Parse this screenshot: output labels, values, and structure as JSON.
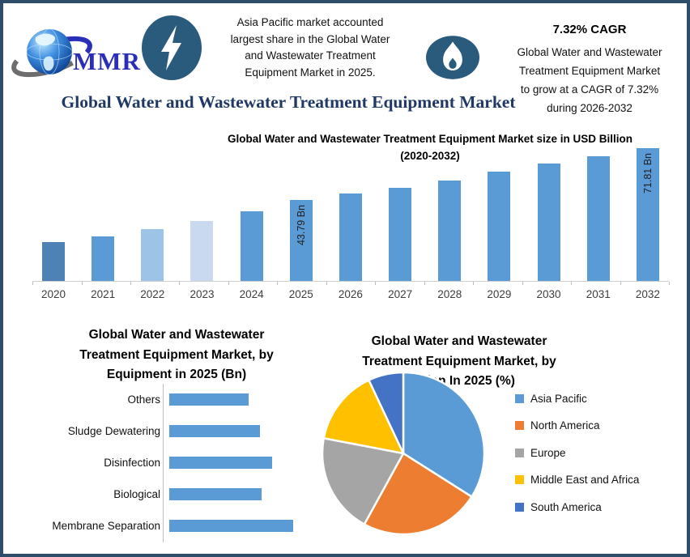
{
  "header": {
    "logo": {
      "icon": "globe-logo",
      "text": "MMR"
    },
    "highlight": {
      "icon": "lightning-icon",
      "lines": [
        "Asia Pacific market accounted",
        "largest share in the Global Water",
        "and Wastewater Treatment",
        "Equipment Market in 2025."
      ]
    },
    "cagr": {
      "icon": "flame-icon",
      "heading": "7.32% CAGR",
      "lines": [
        "Global Water and Wastewater",
        "Treatment Equipment Market",
        "to grow at a CAGR of 7.32%",
        "during 2026-2032"
      ]
    }
  },
  "main_title": "Global Water and Wastewater Treatment Equipment Market",
  "colors": {
    "frame_border": "#2E4D6B",
    "icon_badge": "#2A5A7C",
    "title_navy": "#1F3864",
    "bar_blue": "#5B9BD5",
    "logo_blue": "#2B2FB8",
    "axis_gray": "#CFCFCF"
  },
  "chart_data": [
    {
      "id": "market-size-bar",
      "type": "bar",
      "title": "Global Water and Wastewater Treatment Equipment Market size in USD Billion (2020-2032)",
      "title_lines": [
        "Global Water and Wastewater Treatment Equipment Market size in USD Billion",
        "(2020-2032)"
      ],
      "categories": [
        "2020",
        "2021",
        "2022",
        "2023",
        "2024",
        "2025",
        "2026",
        "2027",
        "2028",
        "2029",
        "2030",
        "2031",
        "2032"
      ],
      "values": [
        21,
        24,
        28,
        32.5,
        37.5,
        43.79,
        47.5,
        50.5,
        54.5,
        59,
        63.5,
        67.5,
        71.81
      ],
      "values_note": "only 2025 (43.79 Bn) and 2032 (71.81 Bn) are labeled; other values estimated from bar heights",
      "data_labels": [
        null,
        null,
        null,
        null,
        null,
        "43.79 Bn",
        null,
        null,
        null,
        null,
        null,
        null,
        "71.81 Bn"
      ],
      "bar_colors": [
        "#4E81B4",
        "#5B9BD5",
        "#9DC3E6",
        "#C9D9F0",
        "#5B9BD5",
        "#5B9BD5",
        "#5B9BD5",
        "#5B9BD5",
        "#5B9BD5",
        "#5B9BD5",
        "#5B9BD5",
        "#5B9BD5",
        "#5B9BD5"
      ],
      "unit": "USD Billion",
      "ylim": [
        0,
        71.81
      ],
      "grid": false,
      "legend": false
    },
    {
      "id": "equipment-bar",
      "type": "bar",
      "orientation": "horizontal",
      "title": "Global Water and Wastewater Treatment Equipment Market, by Equipment in 2025 (Bn)",
      "title_lines": [
        "Global Water and Wastewater",
        "Treatment Equipment Market, by",
        "Equipment in 2025 (Bn)"
      ],
      "categories": [
        "Others",
        "Sludge Dewatering",
        "Disinfection",
        "Biological",
        "Membrane Separation"
      ],
      "values": [
        7.1,
        8.1,
        9.2,
        8.3,
        11.1
      ],
      "values_note": "no data labels shown in chart; values are estimates of relative bar lengths in Bn",
      "bar_color": "#5B9BD5",
      "grid": false,
      "legend": false
    },
    {
      "id": "region-pie",
      "type": "pie",
      "title": "Global Water and Wastewater Treatment Equipment Market, by Region In 2025 (%)",
      "title_lines": [
        "Global Water and Wastewater",
        "Treatment Equipment Market, by",
        "Region In 2025 (%)"
      ],
      "labels": [
        "Asia Pacific",
        "North America",
        "Europe",
        "Middle East and Africa",
        "South America"
      ],
      "values": [
        34,
        24,
        20,
        15,
        7
      ],
      "values_note": "percentages estimated from slice angles; no numeric labels shown",
      "colors": [
        "#5B9BD5",
        "#ED7D31",
        "#A5A5A5",
        "#FFC000",
        "#4472C4"
      ],
      "start_angle_deg": 0,
      "legend_position": "right"
    }
  ]
}
